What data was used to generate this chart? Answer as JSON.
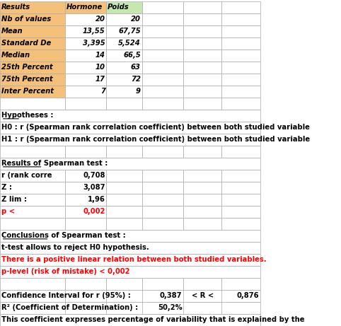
{
  "header_row": [
    "Results",
    "Hormone",
    "Poids"
  ],
  "header_bg": [
    "#F4C07A",
    "#F4C07A",
    "#C5E8B0"
  ],
  "stats_rows": [
    [
      "Nb of values",
      "20",
      "20"
    ],
    [
      "Mean",
      "13,55",
      "67,75"
    ],
    [
      "Standard De",
      "3,395",
      "5,524"
    ],
    [
      "Median",
      "14",
      "66,5"
    ],
    [
      "25th Percent",
      "10",
      "63"
    ],
    [
      "75th Percent",
      "17",
      "72"
    ],
    [
      "Inter Percent",
      "7",
      "9"
    ]
  ],
  "stats_label_bg": "#F4C07A",
  "hypotheses_label": "Hypotheses :",
  "h0_text": "H0 : r (Spearman rank correlation coefficient) between both studied variable",
  "h1_text": "H1 : r (Spearman rank correlation coefficient) between both studied variable",
  "spearman_label": "Results of Spearman test :",
  "spearman_rows": [
    [
      "r (rank corre",
      "0,708"
    ],
    [
      "Z :",
      "3,087"
    ],
    [
      "Z lim :",
      "1,96"
    ],
    [
      "p <",
      "0,002"
    ]
  ],
  "conclusions_label": "Conclusions of Spearman test :",
  "conclusions_rows": [
    [
      "t-test allows to reject H0 hypothesis.",
      "black"
    ],
    [
      "There is a positive linear relation between both studied variables.",
      "red"
    ],
    [
      "p-level (risk of mistake) < 0,002",
      "red"
    ]
  ],
  "ci_label": "Confidence Interval for r (95%) :",
  "ci_values": [
    "0,387",
    "< R <",
    "0,876"
  ],
  "r2_label": "R² (Coefficient of Determination) :",
  "r2_value": "50,2%",
  "last_line": "This coefficient expresses percentage of variability that is explained by the",
  "grid_color": "#AAAAAA",
  "fig_width": 4.82,
  "fig_height": 4.61,
  "dpi": 100,
  "font_size": 7.2
}
